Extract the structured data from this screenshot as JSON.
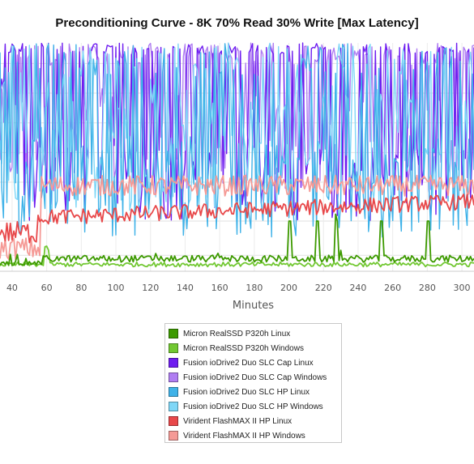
{
  "chart_data": {
    "type": "line",
    "title": "Preconditioning Curve - 8K 70% Read 30% Write [Max Latency]",
    "xlabel": "Minutes",
    "ylabel": "",
    "xlim": [
      33,
      307
    ],
    "ylim": [
      0,
      1
    ],
    "x_ticks": [
      40,
      60,
      80,
      100,
      120,
      140,
      160,
      180,
      200,
      220,
      240,
      260,
      280,
      300
    ],
    "y_axis_labels_visible": false,
    "grid": true,
    "legend_position": "bottom-center",
    "series": [
      {
        "name": "Micron RealSSD P320h Linux",
        "color": "#3d9a00",
        "approx_baseline": 0.04
      },
      {
        "name": "Micron RealSSD P320h Windows",
        "color": "#72c832",
        "approx_baseline": 0.03
      },
      {
        "name": "Fusion ioDrive2 Duo SLC Cap Linux",
        "color": "#6e1cf0",
        "approx_baseline": 0.4
      },
      {
        "name": "Fusion ioDrive2 Duo SLC Cap Windows",
        "color": "#b07ef2",
        "approx_baseline": 0.55
      },
      {
        "name": "Fusion ioDrive2 Duo SLC HP Linux",
        "color": "#3fb2e8",
        "approx_baseline": 0.42
      },
      {
        "name": "Fusion ioDrive2 Duo SLC HP Windows",
        "color": "#7fd7f7",
        "approx_baseline": 0.45
      },
      {
        "name": "Virident FlashMAX II HP Linux",
        "color": "#e8484a",
        "approx_baseline": 0.22
      },
      {
        "name": "Virident FlashMAX II HP Windows",
        "color": "#f59a96",
        "approx_baseline": 0.31
      }
    ]
  }
}
